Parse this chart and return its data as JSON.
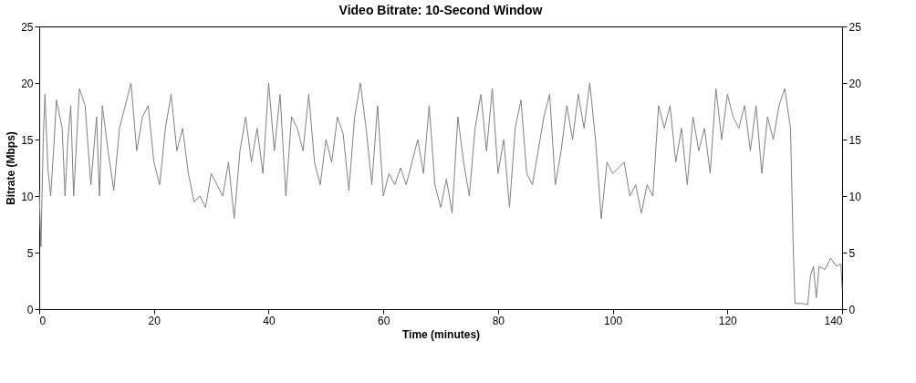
{
  "chart_data": {
    "type": "line",
    "title": "Video Bitrate: 10-Second Window",
    "xlabel": "Time (minutes)",
    "ylabel": "Bitrate (Mbps)",
    "x": [
      0,
      0.3,
      0.7,
      1,
      1.5,
      2,
      2.5,
      3,
      4,
      4.5,
      5,
      5.5,
      6,
      7,
      8,
      9,
      10,
      10.5,
      11,
      12,
      13,
      14,
      15,
      16,
      17,
      18,
      19,
      20,
      21,
      22,
      23,
      24,
      25,
      26,
      27,
      28,
      29,
      30,
      31,
      32,
      33,
      34,
      35,
      36,
      37,
      38,
      39,
      40,
      41,
      42,
      43,
      44,
      45,
      46,
      47,
      48,
      49,
      50,
      51,
      52,
      53,
      54,
      55,
      56,
      57,
      58,
      59,
      60,
      61,
      62,
      63,
      64,
      65,
      66,
      67,
      68,
      69,
      70,
      71,
      72,
      73,
      74,
      75,
      76,
      77,
      78,
      79,
      80,
      81,
      82,
      83,
      84,
      85,
      86,
      87,
      88,
      89,
      90,
      91,
      92,
      93,
      94,
      95,
      96,
      97,
      98,
      99,
      100,
      101,
      102,
      103,
      104,
      105,
      106,
      107,
      108,
      109,
      110,
      111,
      112,
      113,
      114,
      115,
      116,
      117,
      118,
      119,
      120,
      121,
      122,
      123,
      124,
      125,
      126,
      127,
      128,
      129,
      130,
      131,
      131.5,
      131.8,
      133,
      134,
      134.5,
      135,
      135.5,
      136,
      137,
      138,
      139,
      139.8,
      140
    ],
    "series": [
      {
        "color": "#808080",
        "values": [
          10.5,
          5.5,
          15,
          19,
          12.5,
          10,
          14,
          18.5,
          16,
          10,
          15,
          18,
          10,
          19.5,
          18,
          11,
          17,
          10,
          18,
          14,
          10.5,
          16,
          18,
          20,
          14,
          17,
          18,
          13,
          11,
          16,
          19,
          14,
          16,
          12,
          9.5,
          10,
          9,
          12,
          11,
          10,
          13,
          8,
          14,
          17,
          13,
          16,
          12,
          20,
          14,
          19,
          10,
          17,
          16,
          14,
          19,
          13,
          11,
          15,
          13,
          17,
          15.5,
          10.5,
          17,
          20,
          16,
          11,
          18,
          10,
          12,
          11,
          12.5,
          11,
          13,
          15,
          12,
          18,
          11,
          9,
          11.5,
          8.5,
          17,
          13,
          10,
          16,
          19,
          14,
          19.5,
          12,
          15,
          9,
          16,
          18.5,
          12,
          11,
          14,
          17,
          19,
          11,
          14,
          18,
          15,
          19,
          16,
          20,
          15,
          8,
          13,
          12,
          12.5,
          13,
          10,
          11,
          8.5,
          11,
          10,
          18,
          16,
          18,
          13,
          16,
          11,
          17,
          14,
          16,
          12,
          19.5,
          15,
          19,
          17,
          16,
          18,
          14,
          18,
          12,
          17,
          15,
          18,
          19.5,
          16,
          5,
          0.5,
          0.5,
          0.4,
          3,
          3.8,
          1,
          3.8,
          3.5,
          4.5,
          3.8,
          4,
          1.8
        ]
      }
    ],
    "xlim": [
      0,
      140
    ],
    "xticks": [
      0,
      20,
      40,
      60,
      80,
      100,
      120,
      140
    ],
    "ylim": [
      0,
      25
    ],
    "yticks": [
      0,
      5,
      10,
      15,
      20,
      25
    ],
    "y2lim": [
      0,
      25
    ],
    "y2ticks": [
      0,
      5,
      10,
      15,
      20,
      25
    ],
    "grid": false,
    "legend": false
  }
}
